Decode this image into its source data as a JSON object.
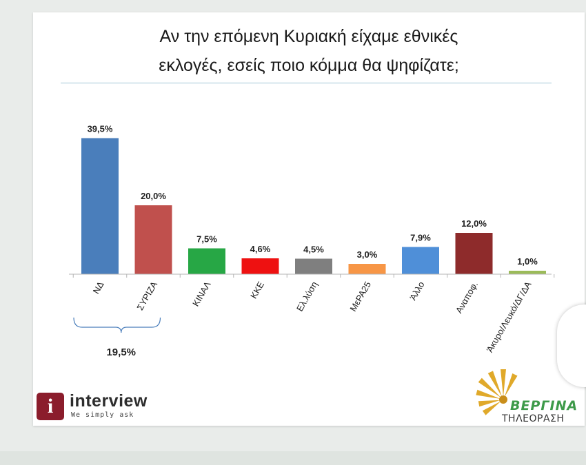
{
  "title_line1": "Αν την επόμενη Κυριακή είχαμε εθνικές",
  "title_line2": "εκλογές, εσείς ποιο κόμμα θα ψηφίζατε;",
  "chart_data": {
    "type": "bar",
    "categories": [
      "ΝΔ",
      "ΣΥΡΙΖΑ",
      "ΚΙΝΑΛ",
      "ΚΚΕ",
      "Ελ.λύση",
      "ΜεΡΑ25",
      "Άλλο",
      "Αναποφ.",
      "Άκυρο/Λευκό/ΔΓ/ΔΑ"
    ],
    "values": [
      39.5,
      20.0,
      7.5,
      4.6,
      4.5,
      3.0,
      7.9,
      12.0,
      1.0
    ],
    "value_labels": [
      "39,5%",
      "20,0%",
      "7,5%",
      "4,6%",
      "4,5%",
      "3,0%",
      "7,9%",
      "12,0%",
      "1,0%"
    ],
    "colors": [
      "#4a7ebb",
      "#c0504d",
      "#27a745",
      "#ee1111",
      "#7f7f7f",
      "#f79646",
      "#4f8fd8",
      "#8e2b2b",
      "#9bbb59"
    ],
    "ylim": [
      0,
      40
    ],
    "annotation": {
      "label": "19,5%",
      "between": [
        "ΝΔ",
        "ΣΥΡΙΖΑ"
      ]
    },
    "grid": false,
    "legend": "none"
  },
  "logos": {
    "interview": {
      "name": "interview",
      "tagline": "We simply ask",
      "icon": "info-i-icon"
    },
    "vergina": {
      "name": "ΒΕΡΓΙΝΑ",
      "subtitle": "ΤΗΛΕΟΡΑΣΗ",
      "icon": "vergina-sun-icon"
    }
  }
}
